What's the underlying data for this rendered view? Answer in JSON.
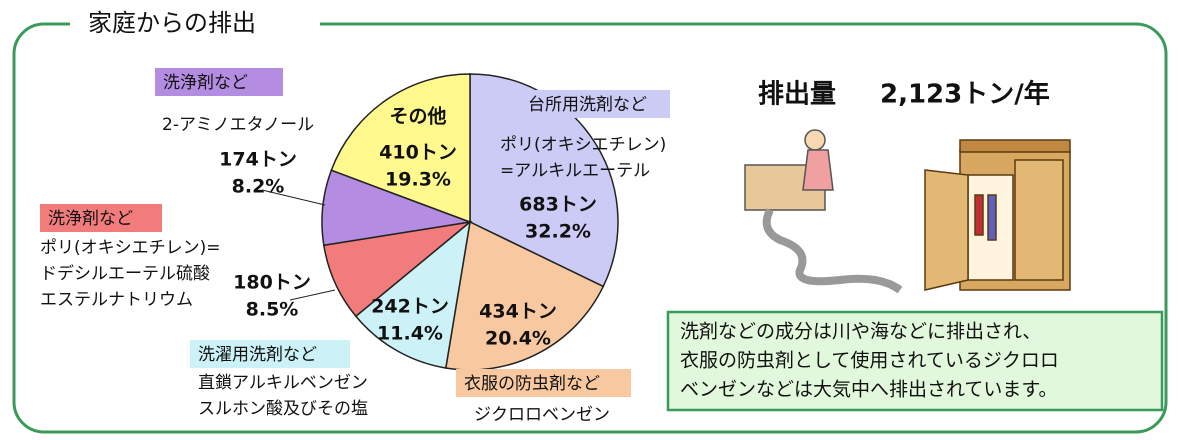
{
  "title": "家庭からの排出",
  "total_label": "排出量",
  "total": {
    "value": 2123,
    "label": "2,123トン/年"
  },
  "note": [
    "洗剤などの成分は川や海などに排出され、",
    "衣服の防虫剤として使用されているジクロロ",
    "ベンゼンなどは大気中へ排出されています。"
  ],
  "chart_data": {
    "type": "pie",
    "categories": [
      "台所用洗剤など",
      "衣服の防虫剤など",
      "洗濯用洗剤など",
      "洗浄剤など",
      "洗浄剤など",
      "その他"
    ],
    "substances": [
      [
        "ポリ(オキシエチレン)",
        "=アルキルエーテル"
      ],
      [
        "ジクロロベンゼン"
      ],
      [
        "直鎖アルキルベンゼン",
        "スルホン酸及びその塩"
      ],
      [
        "ポリ(オキシエチレン)=",
        "ドデシルエーテル硫酸",
        "エステルナトリウム"
      ],
      [
        "2-アミノエタノール"
      ],
      null
    ],
    "values": [
      683,
      434,
      242,
      180,
      174,
      410
    ],
    "value_labels": [
      "683トン",
      "434トン",
      "242トン",
      "180トン",
      "174トン",
      "410トン"
    ],
    "percents": [
      32.2,
      20.4,
      11.4,
      8.5,
      8.2,
      19.3
    ],
    "percent_labels": [
      "32.2%",
      "20.4%",
      "11.4%",
      "8.5%",
      "8.2%",
      "19.3%"
    ],
    "colors": [
      "#cbcbf5",
      "#f8c9a0",
      "#ccf2f8",
      "#f27c7c",
      "#b48de2",
      "#fff98e"
    ]
  }
}
